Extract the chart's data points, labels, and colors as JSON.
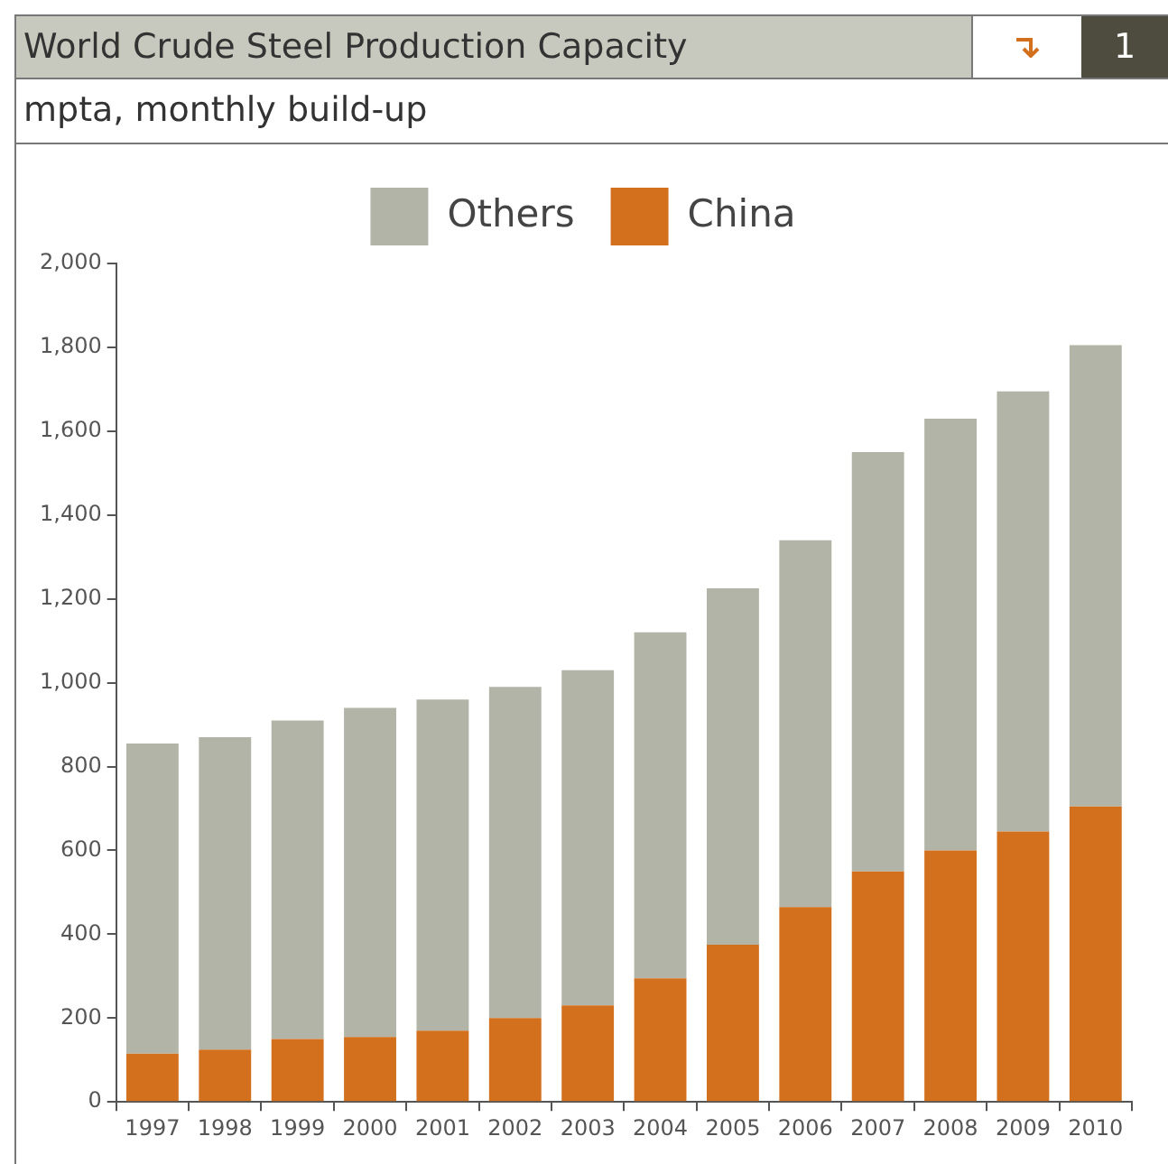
{
  "chart_data": {
    "type": "bar",
    "title": "World Crude Steel Production Capacity",
    "subtitle": "mpta, monthly build-up",
    "annotations": [
      "1"
    ],
    "categories": [
      "1997",
      "1998",
      "1999",
      "2000",
      "2001",
      "2002",
      "2003",
      "2004",
      "2005",
      "2006",
      "2007",
      "2008",
      "2009",
      "2010"
    ],
    "series": [
      {
        "name": "China",
        "color": "#d2701e",
        "values": [
          115,
          125,
          150,
          155,
          170,
          200,
          230,
          295,
          375,
          465,
          550,
          600,
          645,
          705
        ]
      },
      {
        "name": "Others",
        "color": "#b1b4a7",
        "values": [
          740,
          745,
          760,
          785,
          790,
          790,
          800,
          825,
          850,
          875,
          1000,
          1030,
          1050,
          1100
        ]
      }
    ],
    "stacked": true,
    "ylim": [
      0,
      2000
    ],
    "yticks": [
      {
        "value": 0,
        "label": "0"
      },
      {
        "value": 200,
        "label": "200"
      },
      {
        "value": 400,
        "label": "400"
      },
      {
        "value": 600,
        "label": "600"
      },
      {
        "value": 800,
        "label": "800"
      },
      {
        "value": 1000,
        "label": "1,000"
      },
      {
        "value": 1200,
        "label": "1,200"
      },
      {
        "value": 1400,
        "label": "1,400"
      },
      {
        "value": 1600,
        "label": "1,600"
      },
      {
        "value": 1800,
        "label": "1,800"
      },
      {
        "value": 2000,
        "label": "2,000"
      }
    ],
    "grid": false,
    "legend": "top"
  }
}
